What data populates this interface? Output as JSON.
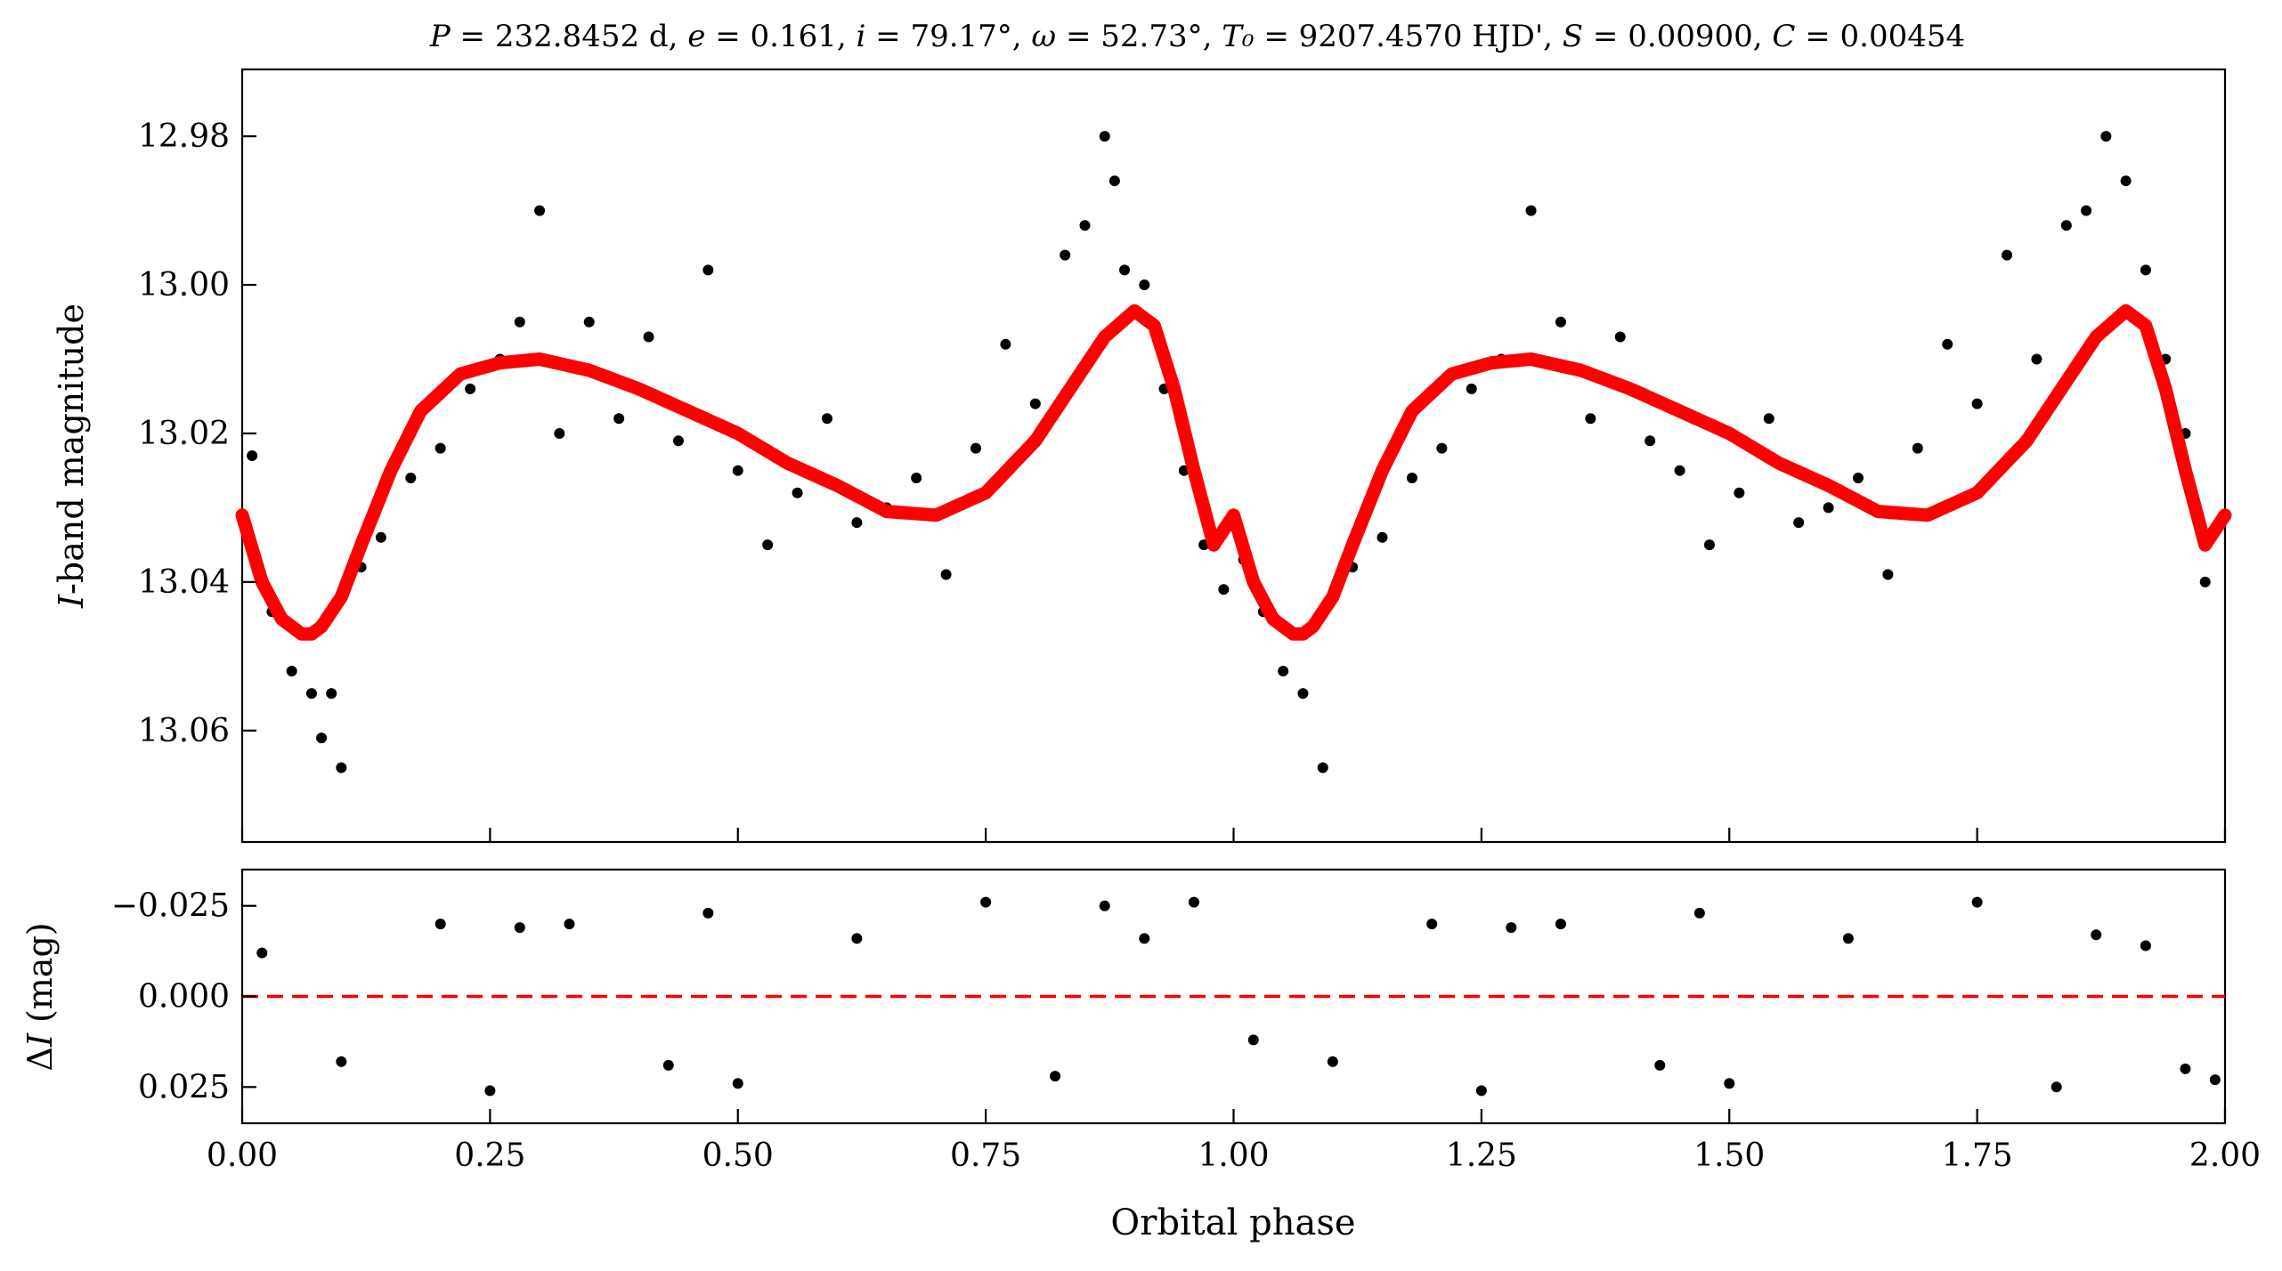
{
  "chart_data": [
    {
      "panel": "top",
      "type": "scatter",
      "title": "P = 232.8452 d, e = 0.161, i = 79.17°, ω = 52.73°, T₀ = 9207.4570 HJD', S = 0.00900, C = 0.00454",
      "title_parts": [
        {
          "text": "P",
          "italic": true
        },
        {
          "text": " = 232.8452 d, ",
          "italic": false
        },
        {
          "text": "e",
          "italic": true
        },
        {
          "text": " = 0.161, ",
          "italic": false
        },
        {
          "text": "i",
          "italic": true
        },
        {
          "text": " = 79.17°, ",
          "italic": false
        },
        {
          "text": "ω",
          "italic": true
        },
        {
          "text": " = 52.73°, ",
          "italic": false
        },
        {
          "text": "T₀",
          "italic": true
        },
        {
          "text": " = 9207.4570 HJD', ",
          "italic": false
        },
        {
          "text": "S",
          "italic": true
        },
        {
          "text": " = 0.00900, ",
          "italic": false
        },
        {
          "text": "C",
          "italic": true
        },
        {
          "text": " = 0.00454",
          "italic": false
        }
      ],
      "ylabel": "I-band magnitude",
      "ylabel_parts": [
        {
          "text": "I",
          "italic": true
        },
        {
          "text": "-band magnitude",
          "italic": false
        }
      ],
      "y_inverted": true,
      "xlim": [
        0.0,
        2.0
      ],
      "ylim": [
        12.971,
        13.075
      ],
      "y_ticks": [
        "12.98",
        "13.00",
        "13.02",
        "13.04",
        "13.06"
      ],
      "y_tick_values": [
        12.98,
        13.0,
        13.02,
        13.04,
        13.06
      ],
      "x_tick_values": [
        0.0,
        0.25,
        0.5,
        0.75,
        1.0,
        1.25,
        1.5,
        1.75,
        2.0
      ],
      "series": [
        {
          "type": "line",
          "color": "#ff0000",
          "x": [
            0.0,
            0.02,
            0.04,
            0.06,
            0.07,
            0.08,
            0.1,
            0.12,
            0.15,
            0.18,
            0.22,
            0.26,
            0.3,
            0.35,
            0.4,
            0.45,
            0.5,
            0.55,
            0.6,
            0.65,
            0.7,
            0.75,
            0.8,
            0.84,
            0.87,
            0.9,
            0.92,
            0.94,
            0.96,
            0.98,
            1.0,
            1.02,
            1.04,
            1.06,
            1.07,
            1.08,
            1.1,
            1.12,
            1.15,
            1.18,
            1.22,
            1.26,
            1.3,
            1.35,
            1.4,
            1.45,
            1.5,
            1.55,
            1.6,
            1.65,
            1.7,
            1.75,
            1.8,
            1.84,
            1.87,
            1.9,
            1.92,
            1.94,
            1.96,
            1.98,
            2.0
          ],
          "y": [
            13.031,
            13.04,
            13.045,
            13.047,
            13.047,
            13.046,
            13.042,
            13.035,
            13.025,
            13.017,
            13.012,
            13.0105,
            13.01,
            13.0115,
            13.014,
            13.017,
            13.02,
            13.024,
            13.027,
            13.0305,
            13.031,
            13.028,
            13.021,
            13.013,
            13.007,
            13.0035,
            13.0055,
            13.014,
            13.025,
            13.035,
            13.031,
            13.04,
            13.045,
            13.047,
            13.047,
            13.046,
            13.042,
            13.035,
            13.025,
            13.017,
            13.012,
            13.0105,
            13.01,
            13.0115,
            13.014,
            13.017,
            13.02,
            13.024,
            13.027,
            13.0305,
            13.031,
            13.028,
            13.021,
            13.013,
            13.007,
            13.0035,
            13.0055,
            13.014,
            13.025,
            13.035,
            13.031
          ]
        },
        {
          "type": "scatter",
          "color": "#000000",
          "description_values": "observations scattered about the model; roughly 1000 points per unit phase (values sampled)",
          "x": [
            0.01,
            0.03,
            0.05,
            0.07,
            0.08,
            0.09,
            0.1,
            0.12,
            0.14,
            0.17,
            0.2,
            0.23,
            0.26,
            0.28,
            0.3,
            0.32,
            0.35,
            0.38,
            0.41,
            0.44,
            0.47,
            0.5,
            0.53,
            0.56,
            0.59,
            0.62,
            0.65,
            0.68,
            0.71,
            0.74,
            0.77,
            0.8,
            0.83,
            0.85,
            0.87,
            0.88,
            0.89,
            0.91,
            0.93,
            0.95,
            0.97,
            0.99,
            1.01,
            1.03,
            1.05,
            1.07,
            1.09,
            1.12,
            1.15,
            1.18,
            1.21,
            1.24,
            1.27,
            1.3,
            1.33,
            1.36,
            1.39,
            1.42,
            1.45,
            1.48,
            1.51,
            1.54,
            1.57,
            1.6,
            1.63,
            1.66,
            1.69,
            1.72,
            1.75,
            1.78,
            1.81,
            1.84,
            1.86,
            1.88,
            1.9,
            1.92,
            1.94,
            1.96,
            1.98
          ],
          "y": [
            13.023,
            13.044,
            13.052,
            13.055,
            13.061,
            13.055,
            13.065,
            13.038,
            13.034,
            13.026,
            13.022,
            13.014,
            13.01,
            13.005,
            12.99,
            13.02,
            13.005,
            13.018,
            13.007,
            13.021,
            12.998,
            13.025,
            13.035,
            13.028,
            13.018,
            13.032,
            13.03,
            13.026,
            13.039,
            13.022,
            13.008,
            13.016,
            12.996,
            12.992,
            12.98,
            12.986,
            12.998,
            13.0,
            13.014,
            13.025,
            13.035,
            13.041,
            13.037,
            13.044,
            13.052,
            13.055,
            13.065,
            13.038,
            13.034,
            13.026,
            13.022,
            13.014,
            13.01,
            12.99,
            13.005,
            13.018,
            13.007,
            13.021,
            13.025,
            13.035,
            13.028,
            13.018,
            13.032,
            13.03,
            13.026,
            13.039,
            13.022,
            13.008,
            13.016,
            12.996,
            13.01,
            12.992,
            12.99,
            12.98,
            12.986,
            12.998,
            13.01,
            13.02,
            13.04
          ]
        }
      ]
    },
    {
      "panel": "bottom",
      "type": "scatter",
      "xlabel": "Orbital phase",
      "ylabel": "ΔI (mag)",
      "ylabel_parts": [
        {
          "text": "Δ",
          "italic": false
        },
        {
          "text": "I",
          "italic": true
        },
        {
          "text": " (mag)",
          "italic": false
        }
      ],
      "y_inverted": true,
      "xlim": [
        0.0,
        2.0
      ],
      "ylim": [
        -0.035,
        0.035
      ],
      "y_ticks": [
        "−0.025",
        "0.000",
        "0.025"
      ],
      "y_tick_values": [
        -0.025,
        0.0,
        0.025
      ],
      "x_ticks": [
        "0.00",
        "0.25",
        "0.50",
        "0.75",
        "1.00",
        "1.25",
        "1.50",
        "1.75",
        "2.00"
      ],
      "x_tick_values": [
        0.0,
        0.25,
        0.5,
        0.75,
        1.0,
        1.25,
        1.5,
        1.75,
        2.0
      ],
      "zero_line": {
        "value": 0.0,
        "color": "#ff0000",
        "style": "dashed"
      },
      "series": [
        {
          "type": "scatter",
          "color": "#000000",
          "x": [
            0.02,
            0.1,
            0.2,
            0.25,
            0.28,
            0.33,
            0.43,
            0.47,
            0.5,
            0.62,
            0.75,
            0.82,
            0.87,
            0.91,
            0.96,
            1.02,
            1.1,
            1.2,
            1.25,
            1.28,
            1.33,
            1.43,
            1.47,
            1.5,
            1.62,
            1.75,
            1.83,
            1.87,
            1.92,
            1.96,
            1.99
          ],
          "y": [
            -0.012,
            0.018,
            -0.02,
            0.026,
            -0.019,
            -0.02,
            0.019,
            -0.023,
            0.024,
            -0.016,
            -0.026,
            0.022,
            -0.025,
            -0.016,
            -0.026,
            0.012,
            0.018,
            -0.02,
            0.026,
            -0.019,
            -0.02,
            0.019,
            -0.023,
            0.024,
            -0.016,
            -0.026,
            0.025,
            -0.017,
            -0.014,
            0.02,
            0.023
          ]
        }
      ]
    }
  ]
}
